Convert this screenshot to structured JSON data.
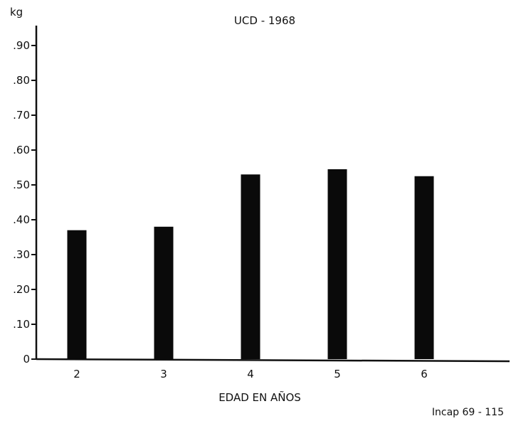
{
  "chart_data": {
    "type": "bar",
    "title": "UCD - 1968",
    "ylabel": "kg",
    "xlabel": "EDAD EN AÑOS",
    "categories": [
      "2",
      "3",
      "4",
      "5",
      "6"
    ],
    "values": [
      0.37,
      0.38,
      0.53,
      0.545,
      0.525
    ],
    "ylim": [
      0,
      0.95
    ],
    "yticks": [
      0,
      0.1,
      0.2,
      0.3,
      0.4,
      0.5,
      0.6,
      0.7,
      0.8,
      0.9
    ],
    "ytick_labels": [
      "0",
      ".10",
      ".20",
      ".30",
      ".40",
      ".50",
      ".60",
      ".70",
      ".80",
      ".90"
    ],
    "grid": false,
    "bar_color": "#0a0a0a"
  },
  "footer_note": "Incap 69 - 115"
}
